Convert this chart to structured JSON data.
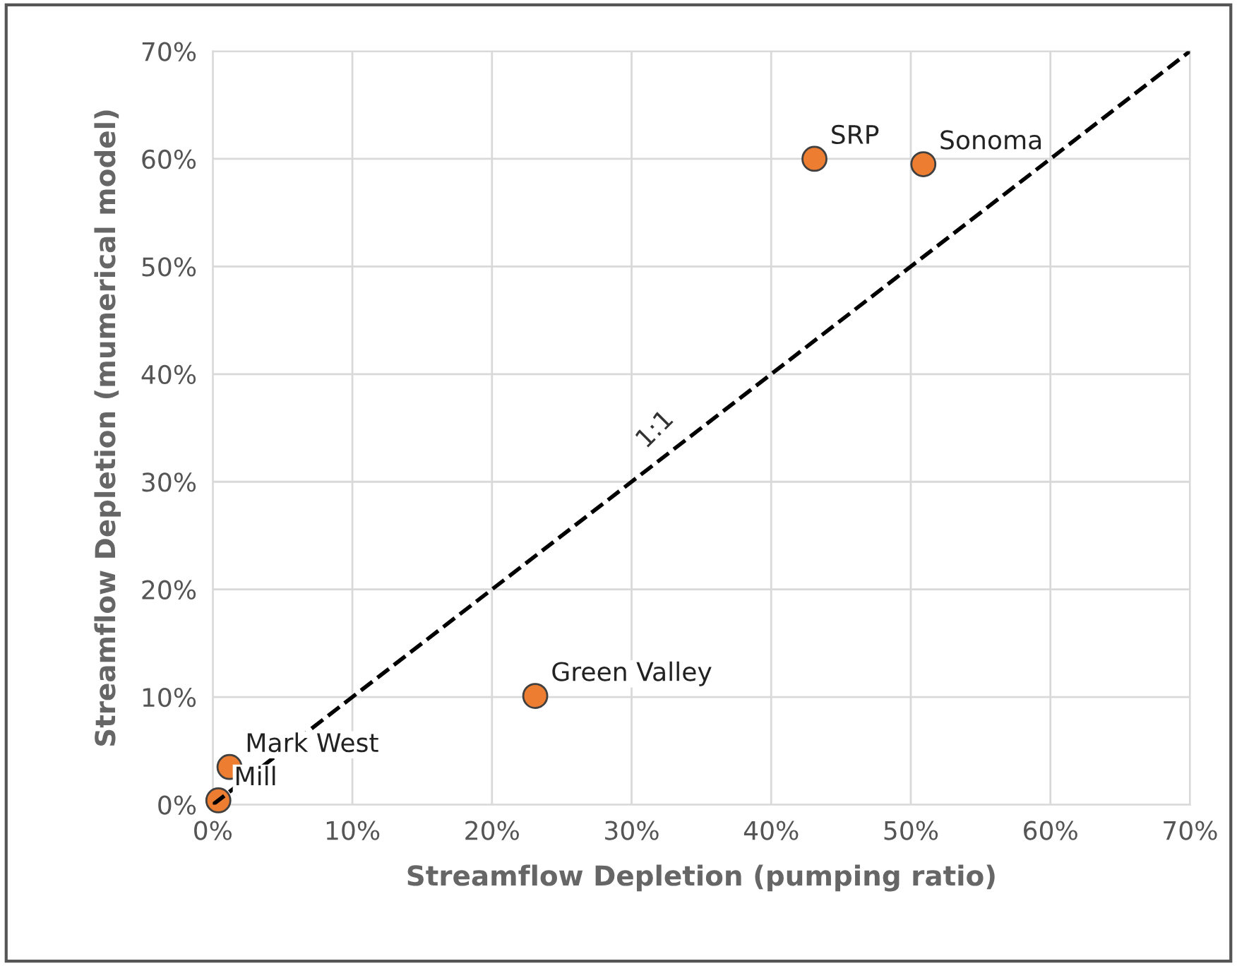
{
  "chart_data": {
    "type": "scatter",
    "xlabel": "Streamflow Depletion (pumping ratio)",
    "ylabel": "Streamflow Depletion (mumerical model)",
    "xlim": [
      0,
      70
    ],
    "ylim": [
      0,
      70
    ],
    "xticks": [
      {
        "value": 0,
        "label": "0%"
      },
      {
        "value": 10,
        "label": "10%"
      },
      {
        "value": 20,
        "label": "20%"
      },
      {
        "value": 30,
        "label": "30%"
      },
      {
        "value": 40,
        "label": "40%"
      },
      {
        "value": 50,
        "label": "50%"
      },
      {
        "value": 60,
        "label": "60%"
      },
      {
        "value": 70,
        "label": "70%"
      }
    ],
    "yticks": [
      {
        "value": 0,
        "label": "0%"
      },
      {
        "value": 10,
        "label": "10%"
      },
      {
        "value": 20,
        "label": "20%"
      },
      {
        "value": 30,
        "label": "30%"
      },
      {
        "value": 40,
        "label": "40%"
      },
      {
        "value": 50,
        "label": "50%"
      },
      {
        "value": 60,
        "label": "60%"
      },
      {
        "value": 70,
        "label": "70%"
      }
    ],
    "grid": true,
    "legend": false,
    "marker": "circle",
    "series": [
      {
        "color": "#ed7d31",
        "x": [
          43.1,
          50.9,
          23.1,
          1.2,
          0.4
        ],
        "values": [
          60.0,
          59.5,
          10.1,
          3.5,
          0.4
        ]
      },
      {
        "type": "line",
        "name": "1:1",
        "color": "#000000",
        "line_style": "dashed",
        "marker": "none",
        "x": [
          0,
          70
        ],
        "values": [
          0,
          70
        ]
      }
    ],
    "annotations": [
      {
        "text": "SRP",
        "x": 43.1,
        "y": 60.0
      },
      {
        "text": "Sonoma",
        "x": 50.9,
        "y": 59.5
      },
      {
        "text": "Green Valley",
        "x": 23.1,
        "y": 10.1
      },
      {
        "text": "Mark West",
        "x": 1.2,
        "y": 3.5
      },
      {
        "text": "Mill",
        "x": 0.4,
        "y": 0.4
      }
    ]
  }
}
